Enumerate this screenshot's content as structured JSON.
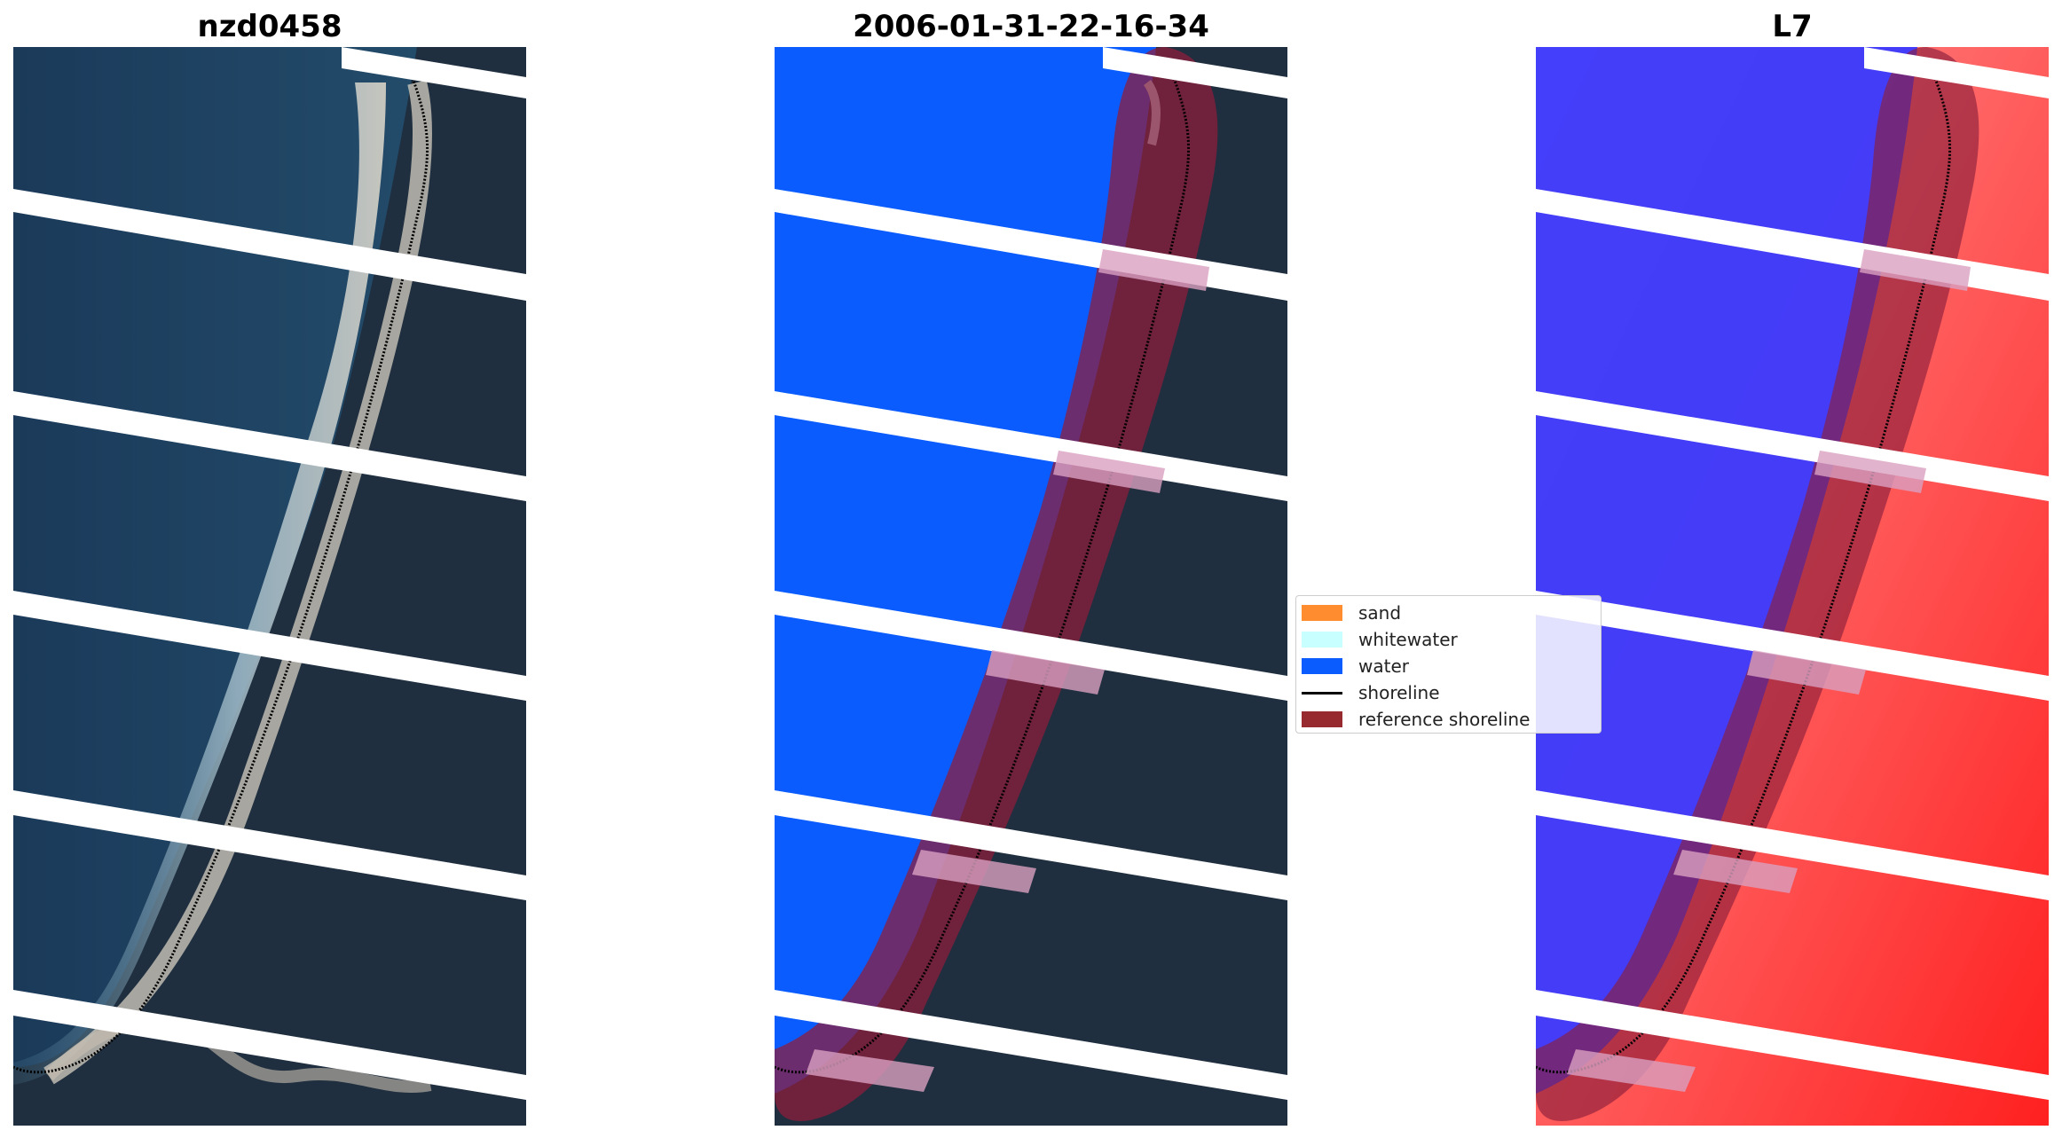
{
  "titles": {
    "left": "nzd0458",
    "middle": "2006-01-31-22-16-34",
    "right": "L7"
  },
  "legend": {
    "items": [
      {
        "label": "sand",
        "color": "#ff8c2e",
        "kind": "patch"
      },
      {
        "label": "whitewater",
        "color": "#c8ffff",
        "kind": "patch"
      },
      {
        "label": "water",
        "color": "#0a5cff",
        "kind": "patch"
      },
      {
        "label": "shoreline",
        "color": "#000000",
        "kind": "line"
      },
      {
        "label": "reference shoreline",
        "color": "#962a2e",
        "kind": "patch"
      }
    ]
  },
  "colors": {
    "ocean": "#1c3d5c",
    "land": "#1e2e3e",
    "water_class": "#0a5cff",
    "stripe": "#ffffff",
    "reference": "#8c1e3c",
    "index_water": "#3a3aff",
    "index_land": "#ff4040"
  }
}
